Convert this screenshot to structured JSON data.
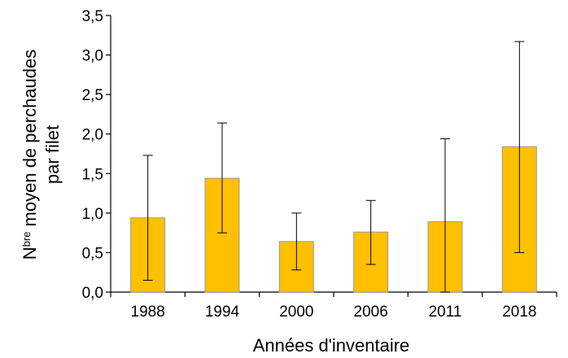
{
  "chart_data": {
    "type": "bar",
    "categories": [
      "1988",
      "1994",
      "2000",
      "2006",
      "2011",
      "2018"
    ],
    "series": [
      {
        "values": [
          0.94,
          1.44,
          0.64,
          0.76,
          0.89,
          1.84
        ],
        "error_low": [
          0.15,
          0.75,
          0.28,
          0.35,
          0.0,
          0.5
        ],
        "error_high": [
          1.73,
          2.14,
          1.0,
          1.16,
          1.94,
          3.17
        ]
      }
    ],
    "title": "",
    "xlabel": "Années d'inventaire",
    "ylabel_prefix": "N",
    "ylabel_superscript": "bre",
    "ylabel_line1_rest": " moyen de perchaudes",
    "ylabel_line2": "par filet",
    "ylim": [
      0,
      3.5
    ],
    "yticks": [
      "0,0",
      "0,5",
      "1,0",
      "1,5",
      "2,0",
      "2,5",
      "3,0",
      "3,5"
    ],
    "ytick_values": [
      0,
      0.5,
      1.0,
      1.5,
      2.0,
      2.5,
      3.0,
      3.5
    ],
    "grid": false,
    "legend": "none",
    "bar_color": "#FFC000",
    "bar_edge_color": "#999999"
  }
}
